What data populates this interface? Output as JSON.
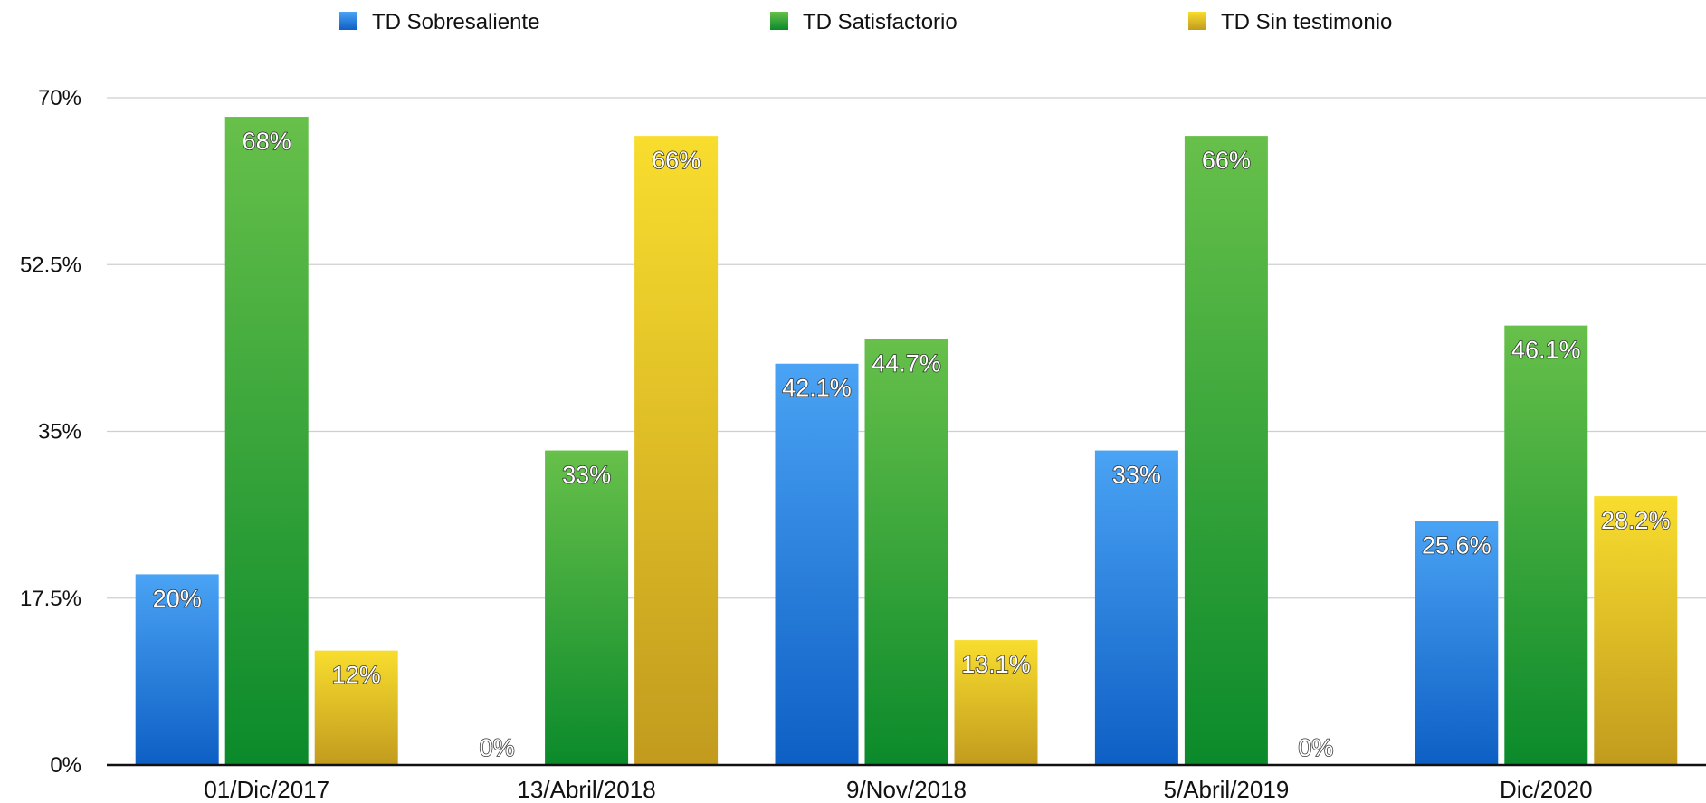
{
  "chart_data": {
    "type": "bar",
    "categories": [
      "01/Dic/2017",
      "13/Abril/2018",
      "9/Nov/2018",
      "5/Abril/2019",
      "Dic/2020"
    ],
    "series": [
      {
        "name": "TD Sobresaliente",
        "values": [
          20,
          0,
          42.1,
          33,
          25.6
        ],
        "labels": [
          "20%",
          "0%",
          "42.1%",
          "33%",
          "25.6%"
        ],
        "color_top": "#4aa3f4",
        "color_bottom": "#0e5fc4"
      },
      {
        "name": "TD Satisfactorio",
        "values": [
          68,
          33,
          44.7,
          66,
          46.1
        ],
        "labels": [
          "68%",
          "33%",
          "44.7%",
          "66%",
          "46.1%"
        ],
        "color_top": "#67c04a",
        "color_bottom": "#0b8a2b"
      },
      {
        "name": "TD Sin testimonio",
        "values": [
          12,
          66,
          13.1,
          0,
          28.2
        ],
        "labels": [
          "12%",
          "66%",
          "13.1%",
          "0%",
          "28.2%"
        ],
        "color_top": "#f8dd2e",
        "color_bottom": "#c29b1e"
      }
    ],
    "yticks": [
      0,
      17.5,
      35,
      52.5,
      70
    ],
    "ytick_labels": [
      "0%",
      "17.5%",
      "35%",
      "52.5%",
      "70%"
    ],
    "ylim": [
      0,
      70
    ],
    "grid": true,
    "legend": "top",
    "title": "",
    "xlabel": "",
    "ylabel": ""
  }
}
